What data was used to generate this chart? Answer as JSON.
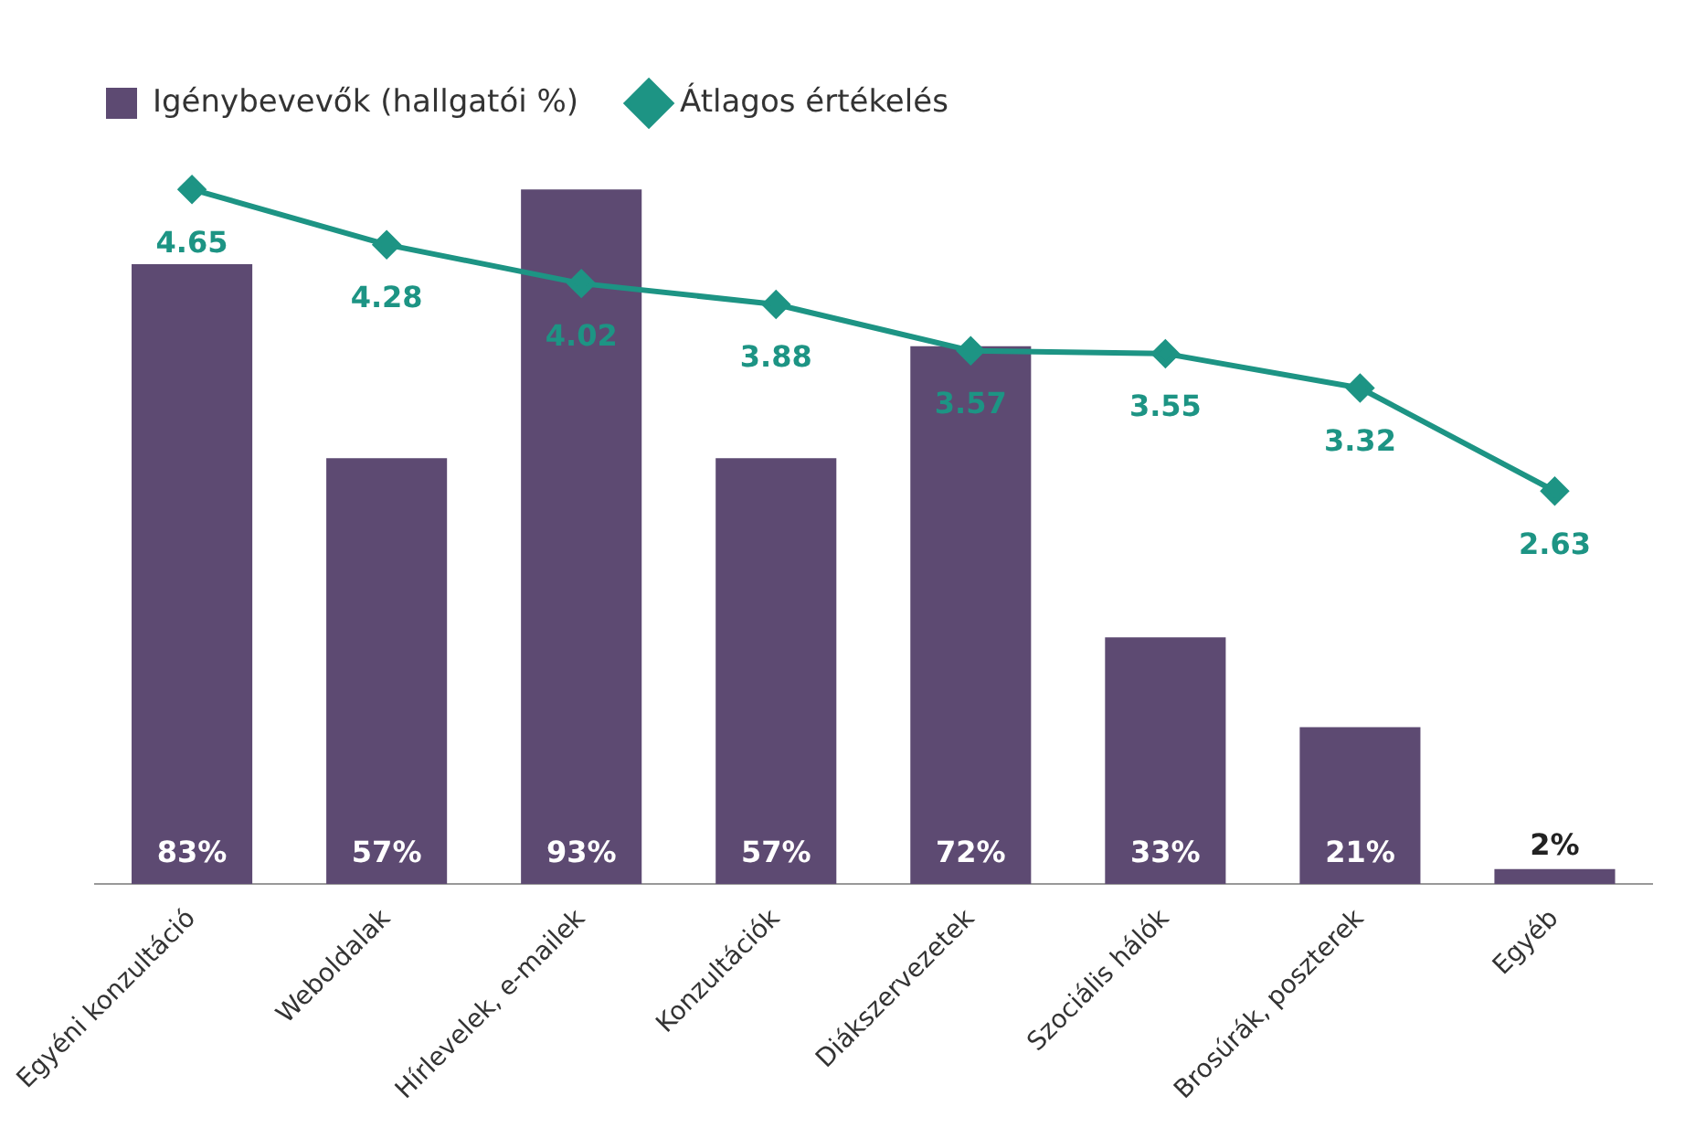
{
  "chart_data": {
    "type": "bar",
    "categories": [
      "Egyéni konzultáció",
      "Weboldalak",
      "Hírlevelek, e-mailek",
      "Konzultációk",
      "Diákszervezetek",
      "Szociális hálók",
      "Brosúrák, poszterek",
      "Egyéb"
    ],
    "series": [
      {
        "name": "Igénybevevők (hallgatói %)",
        "color": "#5d4a72",
        "values": [
          83,
          57,
          93,
          57,
          72,
          33,
          21,
          2
        ],
        "value_labels": [
          "83%",
          "57%",
          "93%",
          "57%",
          "72%",
          "33%",
          "21%",
          "2%"
        ]
      },
      {
        "name": "Átlagos értékelés",
        "type": "line",
        "axis": "y2",
        "color": "#1d9484",
        "values": [
          4.65,
          4.28,
          4.02,
          3.88,
          3.57,
          3.55,
          3.32,
          2.63
        ],
        "value_labels": [
          "4.65",
          "4.28",
          "4.02",
          "3.88",
          "3.57",
          "3.55",
          "3.32",
          "2.63"
        ]
      }
    ],
    "tick_labels": "x",
    "legend": "top left",
    "marker": "diamond",
    "grid": false
  }
}
